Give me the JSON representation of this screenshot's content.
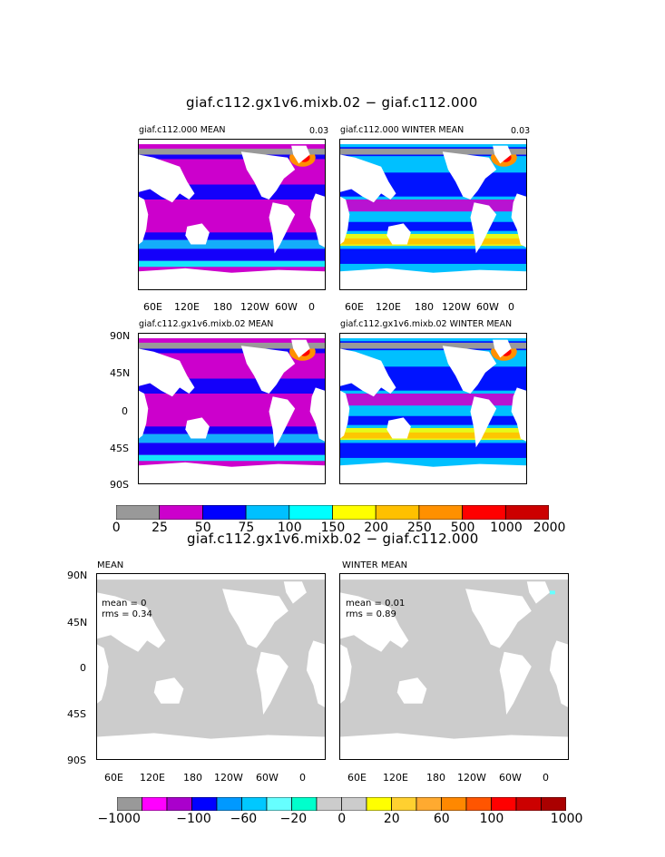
{
  "top": {
    "title": "giaf.c112.gx1v6.mixb.02 − giaf.c112.000",
    "panels": [
      {
        "label": "giaf.c112.000 MEAN",
        "max": "0.03"
      },
      {
        "label": "giaf.c112.000 WINTER MEAN",
        "max": "0.03"
      },
      {
        "label": "giaf.c112.gx1v6.mixb.02 MEAN",
        "max": ""
      },
      {
        "label": "giaf.c112.gx1v6.mixb.02 WINTER MEAN",
        "max": ""
      }
    ],
    "x_ticks": [
      "60E",
      "120E",
      "180",
      "120W",
      "60W",
      "0"
    ],
    "y_ticks": [
      "90N",
      "45N",
      "0",
      "45S",
      "90S"
    ]
  },
  "bottom": {
    "title": "giaf.c112.gx1v6.mixb.02 − giaf.c112.000",
    "panels": [
      {
        "label": "MEAN",
        "mean": "mean = 0",
        "rms": "rms = 0.34"
      },
      {
        "label": "WINTER MEAN",
        "mean": "mean = 0.01",
        "rms": "rms = 0.89"
      }
    ],
    "x_ticks": [
      "60E",
      "120E",
      "180",
      "120W",
      "60W",
      "0"
    ],
    "y_ticks": [
      "90N",
      "45N",
      "0",
      "45S",
      "90S"
    ]
  },
  "colorbar1": {
    "labels": [
      "0",
      "25",
      "50",
      "75",
      "100",
      "150",
      "200",
      "250",
      "500",
      "1000",
      "2000"
    ],
    "colors": [
      "#999999",
      "#cc00cc",
      "#0000ff",
      "#00c0ff",
      "#00ffff",
      "#ffff00",
      "#ffc000",
      "#ff9000",
      "#ff0000",
      "#cc0000"
    ]
  },
  "colorbar2": {
    "labels": [
      "−1000",
      "−100",
      "−60",
      "−20",
      "0",
      "20",
      "60",
      "100",
      "1000"
    ],
    "colors": [
      "#999999",
      "#ff00ff",
      "#aa00cc",
      "#0000ff",
      "#0099ff",
      "#00c8ff",
      "#66ffff",
      "#00ffcc",
      "#cccccc",
      "#cccccc",
      "#ffff00",
      "#ffd030",
      "#ffaa30",
      "#ff8800",
      "#ff5500",
      "#ff0000",
      "#cc0000",
      "#aa0000"
    ]
  },
  "chart_data": [
    {
      "type": "heatmap",
      "title": "giaf.c112.000 MEAN",
      "max_label": "0.03",
      "xlabel": "",
      "ylabel": "",
      "x": [
        "60E",
        "120E",
        "180",
        "120W",
        "60W",
        "0"
      ],
      "y": [
        "90N",
        "45N",
        "0",
        "45S",
        "90S"
      ],
      "levels": [
        0,
        25,
        50,
        75,
        100,
        150,
        200,
        250,
        500,
        1000,
        2000
      ]
    },
    {
      "type": "heatmap",
      "title": "giaf.c112.000 WINTER MEAN",
      "max_label": "0.03",
      "xlabel": "",
      "ylabel": "",
      "x": [
        "60E",
        "120E",
        "180",
        "120W",
        "60W",
        "0"
      ],
      "y": [
        "90N",
        "45N",
        "0",
        "45S",
        "90S"
      ],
      "levels": [
        0,
        25,
        50,
        75,
        100,
        150,
        200,
        250,
        500,
        1000,
        2000
      ]
    },
    {
      "type": "heatmap",
      "title": "giaf.c112.gx1v6.mixb.02 MEAN",
      "xlabel": "",
      "ylabel": "",
      "x": [
        "60E",
        "120E",
        "180",
        "120W",
        "60W",
        "0"
      ],
      "y": [
        "90N",
        "45N",
        "0",
        "45S",
        "90S"
      ],
      "levels": [
        0,
        25,
        50,
        75,
        100,
        150,
        200,
        250,
        500,
        1000,
        2000
      ]
    },
    {
      "type": "heatmap",
      "title": "giaf.c112.gx1v6.mixb.02 WINTER MEAN",
      "xlabel": "",
      "ylabel": "",
      "x": [
        "60E",
        "120E",
        "180",
        "120W",
        "60W",
        "0"
      ],
      "y": [
        "90N",
        "45N",
        "0",
        "45S",
        "90S"
      ],
      "levels": [
        0,
        25,
        50,
        75,
        100,
        150,
        200,
        250,
        500,
        1000,
        2000
      ]
    },
    {
      "type": "heatmap",
      "title": "MEAN",
      "xlabel": "",
      "ylabel": "",
      "mean": 0,
      "rms": 0.34,
      "x": [
        "60E",
        "120E",
        "180",
        "120W",
        "60W",
        "0"
      ],
      "y": [
        "90N",
        "45N",
        "0",
        "45S",
        "90S"
      ],
      "levels": [
        -1000,
        -100,
        -60,
        -20,
        0,
        20,
        60,
        100,
        1000
      ]
    },
    {
      "type": "heatmap",
      "title": "WINTER MEAN",
      "xlabel": "",
      "ylabel": "",
      "mean": 0.01,
      "rms": 0.89,
      "x": [
        "60E",
        "120E",
        "180",
        "120W",
        "60W",
        "0"
      ],
      "y": [
        "90N",
        "45N",
        "0",
        "45S",
        "90S"
      ],
      "levels": [
        -1000,
        -100,
        -60,
        -20,
        0,
        20,
        60,
        100,
        1000
      ]
    }
  ]
}
